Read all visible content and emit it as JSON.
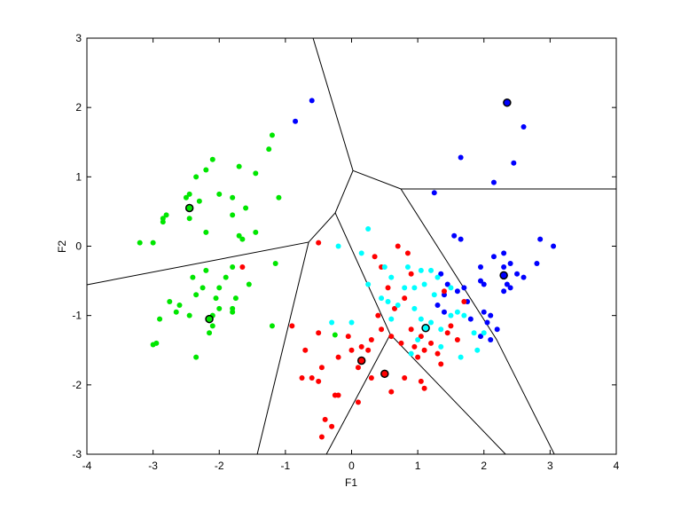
{
  "chart_data": {
    "type": "scatter",
    "x_label": "F1",
    "y_label": "F2",
    "xlim": [
      -4,
      4
    ],
    "ylim": [
      -3,
      3
    ],
    "xticks": [
      -4,
      -3,
      -2,
      -1,
      0,
      1,
      2,
      3,
      4
    ],
    "yticks": [
      -3,
      -2,
      -1,
      0,
      1,
      2,
      3
    ],
    "series": [
      {
        "color": "#00e600",
        "x": [
          -3.2,
          -3.0,
          -2.85,
          -2.8,
          -2.85,
          -2.5,
          -2.45,
          -2.35,
          -2.2,
          -2.1,
          -2.0,
          -1.8,
          -1.7,
          -1.45,
          -1.25,
          -1.2,
          -1.8,
          -1.6,
          -1.45,
          -1.65,
          -1.55,
          -1.7,
          -2.2,
          -2.45,
          -2.3,
          -1.15,
          -1.1,
          -1.8,
          -1.9,
          -2.0,
          -2.05,
          -2.25,
          -2.35,
          -2.4,
          -2.2,
          -2.1,
          -2.1,
          -2.15,
          -2.45,
          -2.6,
          -2.65,
          -2.75,
          -2.9,
          -2.95,
          -3.0,
          -2.35,
          -1.8,
          -1.75,
          -1.8,
          -1.2,
          -0.25,
          -2.0
        ],
        "y": [
          0.05,
          0.05,
          0.35,
          0.45,
          0.4,
          0.7,
          0.75,
          1.0,
          1.1,
          1.25,
          0.75,
          0.7,
          1.15,
          1.05,
          1.4,
          1.6,
          0.45,
          0.55,
          0.2,
          0.1,
          -0.55,
          0.15,
          0.2,
          0.4,
          0.65,
          -0.25,
          0.7,
          -0.3,
          -0.45,
          -0.6,
          -0.75,
          -0.6,
          -0.7,
          -0.45,
          -0.35,
          -1.0,
          -1.15,
          -1.25,
          -1.0,
          -0.85,
          -0.95,
          -0.8,
          -1.05,
          -1.4,
          -1.42,
          -1.6,
          -0.95,
          -0.75,
          -0.9,
          -1.15,
          -1.28,
          -0.9
        ],
        "centers": {
          "x": [
            -2.45,
            -2.15
          ],
          "y": [
            0.55,
            -1.05
          ]
        }
      },
      {
        "color": "#0000ff",
        "x": [
          -0.6,
          -0.85,
          2.6,
          2.45,
          1.65,
          2.15,
          1.25,
          1.65,
          2.85,
          3.05,
          2.3,
          2.15,
          1.95,
          2.4,
          2.5,
          2.6,
          2.8,
          2.0,
          1.95,
          1.35,
          1.45,
          1.6,
          1.7,
          2.3,
          2.4,
          2.35,
          1.4,
          1.75,
          2.0,
          2.1,
          2.05,
          1.95,
          2.1,
          2.2,
          1.8,
          1.3,
          1.4,
          2.3,
          1.55
        ],
        "y": [
          2.1,
          1.8,
          1.72,
          1.2,
          1.28,
          0.92,
          0.77,
          0.1,
          0.1,
          0.0,
          -0.1,
          -0.15,
          -0.3,
          -0.25,
          -0.4,
          -0.45,
          -0.25,
          -0.55,
          -0.5,
          -0.4,
          -0.55,
          -0.65,
          -0.6,
          -0.65,
          -0.6,
          -0.55,
          -0.7,
          -0.8,
          -0.95,
          -1.0,
          -1.1,
          -1.3,
          -1.35,
          -1.2,
          -1.05,
          -0.85,
          -0.95,
          -0.3,
          0.15
        ],
        "centers": {
          "x": [
            2.35,
            2.3
          ],
          "y": [
            2.07,
            -0.42
          ]
        }
      },
      {
        "color": "#ff0000",
        "x": [
          -0.5,
          -1.65,
          -0.9,
          -0.5,
          -0.7,
          -0.75,
          -0.5,
          -0.6,
          -0.45,
          -0.2,
          -0.25,
          -0.2,
          -0.4,
          -0.45,
          -0.3,
          0.1,
          0.15,
          0.25,
          0.3,
          0.45,
          0.4,
          0.6,
          0.75,
          0.9,
          0.95,
          1.0,
          1.05,
          1.1,
          1.2,
          1.3,
          1.35,
          0.8,
          1.05,
          1.1,
          0.6,
          0.3,
          0.1,
          0.0,
          -0.05,
          0.65,
          0.8,
          0.9,
          0.55,
          0.35,
          0.45,
          0.7,
          0.85,
          1.4,
          1.7,
          1.5,
          1.6,
          1.45
        ],
        "y": [
          0.05,
          -0.3,
          -1.15,
          -1.25,
          -1.5,
          -1.9,
          -1.95,
          -1.9,
          -1.75,
          -1.6,
          -2.15,
          -2.15,
          -2.5,
          -2.75,
          -2.6,
          -2.25,
          -1.45,
          -1.5,
          -1.35,
          -1.2,
          -1.0,
          -1.3,
          -1.4,
          -1.2,
          -1.45,
          -1.6,
          -1.3,
          -1.5,
          -1.4,
          -1.55,
          -1.7,
          -1.9,
          -1.95,
          -2.05,
          -2.1,
          -1.9,
          -1.75,
          -1.5,
          -1.3,
          -0.9,
          -0.75,
          -0.4,
          -0.6,
          -0.15,
          -0.3,
          0.0,
          -0.1,
          -0.65,
          -0.8,
          -1.15,
          -1.35,
          -1.25
        ],
        "centers": {
          "x": [
            0.15,
            0.5
          ],
          "y": [
            -1.65,
            -1.84
          ]
        }
      },
      {
        "color": "#00ffff",
        "x": [
          -0.2,
          0.25,
          0.15,
          0.5,
          0.6,
          0.8,
          0.95,
          1.1,
          1.2,
          1.3,
          1.05,
          0.85,
          0.45,
          0.55,
          0.7,
          0.95,
          1.05,
          1.2,
          1.35,
          1.5,
          1.6,
          1.7,
          1.85,
          2.0,
          1.9,
          1.65,
          1.35,
          1.0,
          0.9,
          0.6,
          -0.3,
          0.0,
          1.5,
          1.25,
          0.25
        ],
        "y": [
          0.0,
          0.25,
          -0.1,
          -0.3,
          -0.45,
          -0.6,
          -0.6,
          -0.55,
          -0.35,
          -0.45,
          -0.35,
          -0.3,
          -0.75,
          -0.8,
          -0.85,
          -0.9,
          -1.05,
          -1.1,
          -1.2,
          -1.0,
          -0.95,
          -1.0,
          -1.25,
          -1.25,
          -1.5,
          -1.6,
          -1.45,
          -1.35,
          -1.55,
          -1.05,
          -1.1,
          -1.1,
          -0.6,
          -0.7,
          -0.55
        ],
        "centers": {
          "x": [
            1.12
          ],
          "y": [
            -1.18
          ]
        }
      }
    ],
    "boundaries": [
      {
        "x": [
          -4,
          -0.649,
          -0.247,
          0.021,
          -0.582
        ],
        "y": [
          -0.556,
          0.058,
          0.48,
          1.09,
          3
        ]
      },
      {
        "x": [
          0.021,
          0.745,
          4
        ],
        "y": [
          1.09,
          0.825,
          0.825
        ]
      },
      {
        "x": [
          0.745,
          2.193,
          3.064
        ],
        "y": [
          0.825,
          -1.349,
          -3
        ]
      },
      {
        "x": [
          -0.247,
          0.585,
          2.327
        ],
        "y": [
          0.48,
          -1.272,
          -3
        ]
      },
      {
        "x": [
          0.585,
          -0.381
        ],
        "y": [
          -1.272,
          -3
        ]
      },
      {
        "x": [
          -0.649,
          -1.426
        ],
        "y": [
          0.058,
          -3
        ]
      }
    ]
  }
}
